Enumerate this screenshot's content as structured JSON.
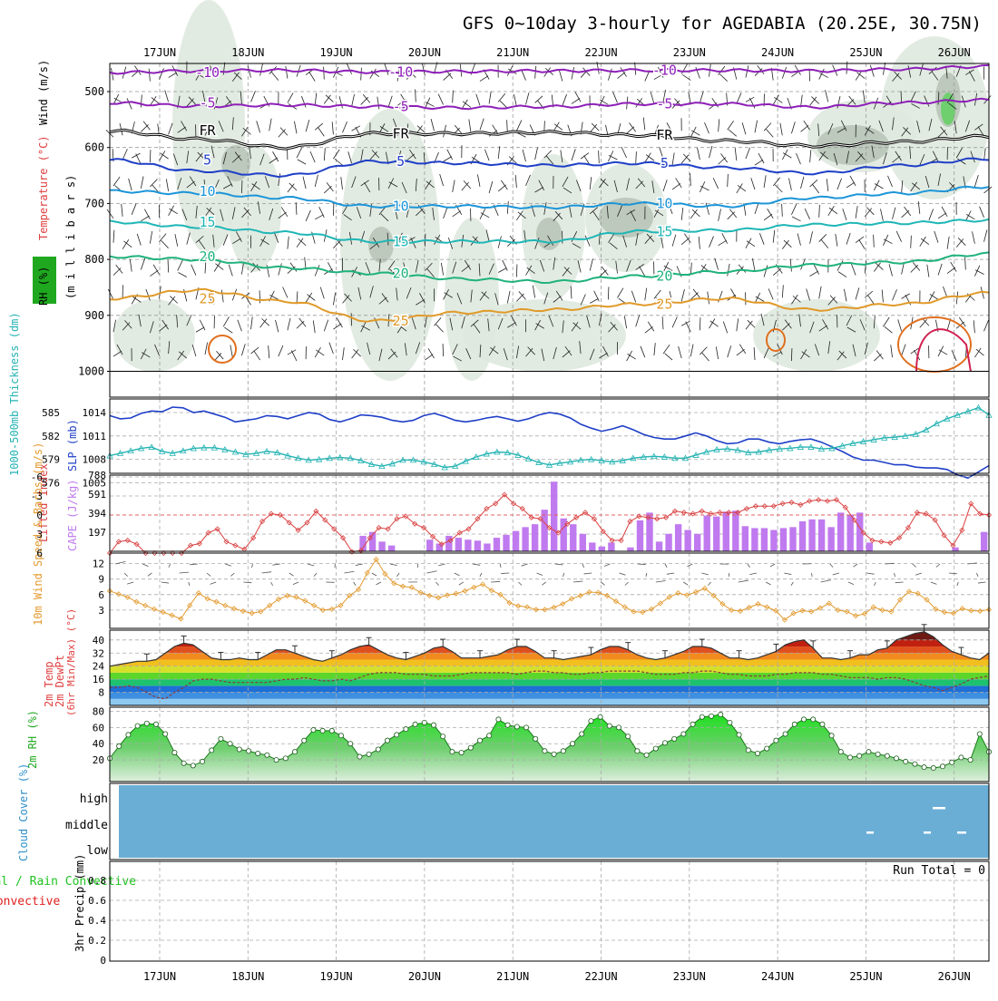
{
  "title": "GFS 0~10day 3-hourly for AGEDABIA (20.25E, 30.75N)",
  "dates": [
    "17JUN",
    "18JUN",
    "19JUN",
    "20JUN",
    "21JUN",
    "22JUN",
    "23JUN",
    "24JUN",
    "25JUN",
    "26JUN"
  ],
  "run_total": "Run Total = 0",
  "colors": {
    "humidity_fill": "#dfe9df",
    "humidity_dark": "#bcc9bc",
    "humidity_green": "#6fcf6f",
    "slp": "#1f3fc7",
    "thickness": "#25b3b3",
    "cape": "#c07aef",
    "lifted_index": "#d94040",
    "wind10": "#e39a2e",
    "cloud_fill": "#6aaed6",
    "rh_green": "#1fc21f"
  },
  "chart_data": [
    {
      "type": "area",
      "name": "upper",
      "ylabel_lines": [
        "RH (%)",
        "Temperature (°C)",
        "Wind (m/s)",
        "(m i l l i b a r s)"
      ],
      "ylim": [
        1000,
        450
      ],
      "ytick_labels": [
        "500",
        "600",
        "700",
        "800",
        "900",
        "1000"
      ],
      "yticks": [
        500,
        600,
        700,
        800,
        900,
        1000
      ],
      "contour_labels": [
        "-10",
        "-5",
        "FR",
        "5",
        "10",
        "15",
        "20",
        "25"
      ],
      "contours": [
        {
          "label": "-10",
          "color": "#8e1fb8",
          "values": [
            466,
            463,
            462,
            465,
            464,
            463,
            462,
            462,
            463,
            460,
            455
          ]
        },
        {
          "label": "-5",
          "color": "#8e1fb8",
          "values": [
            520,
            526,
            524,
            527,
            529,
            527,
            522,
            522,
            528,
            520,
            515
          ]
        },
        {
          "label": "FR",
          "color": "#000000",
          "values": [
            570,
            585,
            600,
            575,
            575,
            573,
            578,
            588,
            597,
            590,
            580
          ]
        },
        {
          "label": "5",
          "color": "#1f3fc7",
          "values": [
            622,
            642,
            650,
            625,
            628,
            632,
            628,
            636,
            646,
            632,
            620
          ]
        },
        {
          "label": "10",
          "color": "#1c95d8",
          "values": [
            678,
            682,
            690,
            705,
            705,
            707,
            700,
            705,
            690,
            682,
            670
          ]
        },
        {
          "label": "15",
          "color": "#1fb6b6",
          "values": [
            733,
            742,
            752,
            768,
            768,
            768,
            750,
            748,
            738,
            735,
            730
          ]
        },
        {
          "label": "20",
          "color": "#1fb27c",
          "values": [
            795,
            800,
            815,
            825,
            835,
            840,
            830,
            822,
            810,
            805,
            790
          ]
        },
        {
          "label": "25",
          "color": "#e09a2a",
          "values": [
            870,
            855,
            875,
            910,
            895,
            890,
            880,
            870,
            890,
            880,
            860
          ]
        }
      ]
    },
    {
      "type": "line",
      "name": "slp-thickness",
      "ylabel": "1000-500mb Thickness (dm)",
      "ylabel2": "SLP (mb)",
      "ytick_labels_left": [
        "585",
        "582",
        "579",
        "576"
      ],
      "ytick_labels_right": [
        "1014",
        "1011",
        "1008",
        "1005"
      ],
      "ylim_slp": [
        1004.5,
        1016
      ],
      "slp": [
        1013.6,
        1013.2,
        1013.3,
        1013.9,
        1014.2,
        1014.1,
        1014.7,
        1014.6,
        1014.0,
        1014.2,
        1013.8,
        1013.4,
        1012.8,
        1013.0,
        1013.2,
        1013.6,
        1013.5,
        1013.2,
        1013.6,
        1014.0,
        1013.8,
        1013.1,
        1012.8,
        1013.2,
        1013.7,
        1013.6,
        1013.4,
        1013.0,
        1012.8,
        1013.0,
        1013.6,
        1013.9,
        1013.5,
        1013.0,
        1012.8,
        1013.0,
        1013.3,
        1013.5,
        1013.2,
        1012.9,
        1013.2,
        1013.7,
        1014.0,
        1013.8,
        1013.3,
        1012.5,
        1012.0,
        1011.6,
        1011.9,
        1012.3,
        1011.8,
        1011.2,
        1010.8,
        1010.6,
        1010.6,
        1011.0,
        1011.4,
        1011.0,
        1010.4,
        1010.0,
        1010.1,
        1010.6,
        1010.6,
        1010.2,
        1010.0,
        1010.3,
        1010.5,
        1010.6,
        1010.2,
        1009.6,
        1009.0,
        1008.3,
        1007.9,
        1007.9,
        1007.6,
        1007.3,
        1007.3,
        1007.0,
        1006.9,
        1006.9,
        1006.7,
        1006.0,
        1005.6,
        1006.4,
        1007.2
      ],
      "thickness": [
        578.0,
        578.4,
        578.8,
        579.2,
        579.4,
        578.7,
        578.4,
        578.8,
        579.2,
        579.3,
        579.3,
        579.0,
        578.6,
        578.2,
        578.4,
        578.7,
        578.5,
        578.0,
        577.6,
        577.3,
        577.4,
        577.6,
        577.7,
        577.6,
        577.2,
        576.6,
        576.3,
        576.7,
        577.3,
        577.3,
        577.0,
        576.6,
        576.1,
        576.3,
        577.1,
        577.8,
        578.3,
        578.6,
        578.5,
        578.1,
        577.5,
        576.9,
        576.5,
        576.8,
        577.0,
        577.3,
        577.4,
        577.2,
        577.0,
        577.2,
        577.6,
        577.8,
        577.9,
        577.8,
        577.6,
        577.6,
        578.1,
        578.6,
        579.0,
        579.1,
        578.9,
        578.5,
        578.6,
        578.9,
        579.1,
        579.2,
        579.4,
        579.4,
        579.1,
        579.2,
        579.6,
        580.0,
        580.3,
        580.6,
        580.9,
        581.0,
        581.2,
        581.5,
        582.2,
        583.2,
        584.0,
        584.6,
        585.2,
        585.8,
        584.6
      ]
    },
    {
      "type": "bar",
      "name": "cape-lifted-index",
      "ylabel": "Lifted Index",
      "ylabel2": "CAPE (J/kg)",
      "ytick_labels_left": [
        "-6",
        "-3",
        "0",
        "3",
        "6"
      ],
      "ytick_labels_right": [
        "788",
        "591",
        "394",
        "197"
      ],
      "cape": [
        0,
        0,
        0,
        0,
        0,
        0,
        0,
        0,
        0,
        0,
        0,
        0,
        0,
        0,
        0,
        0,
        0,
        0,
        0,
        0,
        0,
        0,
        0,
        0,
        0,
        0,
        160,
        200,
        100,
        60,
        0,
        0,
        0,
        120,
        80,
        160,
        140,
        120,
        110,
        80,
        140,
        170,
        210,
        250,
        280,
        430,
        720,
        340,
        280,
        180,
        90,
        50,
        90,
        0,
        40,
        320,
        400,
        100,
        180,
        280,
        220,
        180,
        370,
        360,
        410,
        420,
        260,
        240,
        240,
        220,
        240,
        250,
        310,
        330,
        330,
        250,
        400,
        380,
        400,
        90,
        0,
        0,
        0,
        0,
        0,
        0,
        0,
        0,
        40,
        0,
        0,
        200
      ],
      "lifted_index": [
        6,
        4.2,
        4.0,
        4.6,
        6,
        6,
        6,
        6,
        6,
        4.8,
        4.5,
        2.8,
        2.2,
        4.2,
        4.8,
        5.4,
        3.6,
        1.0,
        -0.2,
        0.0,
        1.2,
        2.4,
        1.2,
        -0.6,
        0.8,
        2.2,
        3.6,
        5.8,
        5.6,
        3.6,
        2.0,
        2.2,
        0.6,
        0.2,
        1.4,
        2.0,
        3.4,
        4.6,
        4.0,
        2.8,
        2.2,
        0.6,
        -1.0,
        -1.8,
        -3.2,
        -1.8,
        -1.0,
        0.4,
        0.6,
        2.0,
        2.8,
        1.4,
        0.4,
        -0.4,
        0.6,
        2.6,
        4.0,
        4.0,
        1.0,
        0.2,
        0.4,
        0.6,
        0.4,
        -0.6,
        -0.4,
        -0.2,
        -0.6,
        -0.2,
        -0.4,
        -0.4,
        -0.4,
        -1.0,
        -1.4,
        -1.4,
        -1.4,
        -1.8,
        -2.0,
        -1.6,
        -2.2,
        -2.4,
        -2.2,
        -2.4,
        -1.2,
        0.8,
        2.8,
        4.0,
        4.2,
        4.4,
        3.6,
        2.0,
        -0.4,
        -0.2,
        0.8,
        3.2,
        4.8,
        2.4,
        -1.8,
        -0.2,
        0.0
      ],
      "li_ylim": [
        6,
        -6
      ],
      "cape_ylim": [
        0,
        788
      ]
    },
    {
      "type": "line",
      "name": "wind10m",
      "ylabel": "10m Wind Speed & Barbs (m/s)",
      "ytick_labels": [
        "12",
        "9",
        "6",
        "3"
      ],
      "ylim": [
        0,
        13.5
      ],
      "values": [
        6.7,
        6.1,
        5.5,
        4.6,
        3.9,
        3.2,
        2.6,
        2.0,
        1.3,
        3.9,
        6.3,
        5.2,
        4.6,
        3.9,
        3.3,
        2.8,
        2.4,
        2.7,
        3.9,
        5.1,
        5.8,
        5.5,
        4.8,
        3.9,
        3.0,
        3.2,
        3.9,
        5.8,
        7.0,
        10.2,
        12.8,
        10.0,
        8.2,
        7.6,
        7.4,
        6.4,
        5.8,
        5.4,
        5.9,
        6.2,
        6.7,
        7.4,
        8.0,
        6.8,
        6.0,
        4.4,
        3.8,
        3.6,
        3.1,
        3.1,
        3.5,
        4.2,
        5.2,
        5.8,
        6.5,
        6.4,
        5.8,
        4.7,
        3.6,
        2.7,
        2.6,
        3.2,
        4.3,
        5.5,
        6.3,
        5.9,
        6.5,
        7.2,
        5.8,
        4.2,
        3.0,
        2.8,
        3.5,
        4.2,
        3.6,
        2.9,
        1.1,
        2.4,
        2.9,
        2.7,
        3.4,
        4.3,
        3.0,
        2.7,
        1.9,
        2.3,
        3.6,
        3.0,
        2.7,
        5.0,
        6.6,
        6.2,
        5.0,
        3.2,
        2.6,
        2.4,
        3.3,
        2.9,
        2.8,
        3.1
      ]
    },
    {
      "type": "area",
      "name": "temp-dewpoint",
      "ylabel_lines": [
        "2m Temp",
        "2m DewPt",
        "(6hr Min/Max) (°C)"
      ],
      "ytick_labels": [
        "40",
        "32",
        "24",
        "16",
        "8"
      ],
      "ylim": [
        0,
        46
      ],
      "temp": [
        24,
        25,
        26,
        27,
        27,
        28,
        32,
        36,
        38,
        37,
        33,
        29,
        28,
        28,
        29,
        28,
        28,
        31,
        34,
        34,
        32,
        30,
        28,
        27,
        29,
        31,
        34,
        36,
        37,
        34,
        31,
        29,
        28,
        30,
        32,
        35,
        36,
        33,
        29,
        29,
        29,
        30,
        31,
        34,
        36,
        36,
        33,
        29,
        29,
        28,
        29,
        30,
        31,
        34,
        36,
        36,
        34,
        31,
        29,
        28,
        29,
        31,
        33,
        36,
        36,
        35,
        32,
        29,
        29,
        28,
        29,
        31,
        33,
        37,
        39,
        40,
        35,
        29,
        29,
        28,
        29,
        31,
        31,
        34,
        35,
        40,
        42,
        44,
        45,
        42,
        37,
        33,
        31,
        29,
        28,
        32
      ],
      "dewpoint": [
        11,
        11,
        12,
        11,
        8,
        5,
        4,
        8,
        11,
        15,
        16,
        16,
        15,
        14,
        14,
        14,
        14,
        14,
        15,
        16,
        16,
        17,
        16,
        15,
        15,
        16,
        15,
        17,
        19,
        20,
        20,
        20,
        19,
        19,
        19,
        18,
        18,
        18,
        19,
        20,
        20,
        20,
        20,
        20,
        19,
        20,
        21,
        21,
        20,
        20,
        19,
        19,
        20,
        20,
        21,
        21,
        21,
        21,
        20,
        19,
        19,
        19,
        20,
        20,
        21,
        21,
        20,
        19,
        19,
        18,
        18,
        18,
        19,
        19,
        20,
        20,
        20,
        19,
        19,
        18,
        17,
        17,
        17,
        16,
        17,
        17,
        16,
        14,
        12,
        11,
        9,
        11,
        13,
        16,
        17,
        18
      ]
    },
    {
      "type": "area",
      "name": "rh2m",
      "ylabel": "2m RH (%)",
      "ytick_labels": [
        "80",
        "60",
        "40",
        "20"
      ],
      "ylim": [
        0,
        85
      ],
      "values": [
        22,
        37,
        51,
        62,
        65,
        64,
        52,
        29,
        16,
        13,
        18,
        32,
        46,
        40,
        33,
        31,
        28,
        26,
        20,
        22,
        30,
        44,
        57,
        56,
        56,
        50,
        40,
        24,
        27,
        33,
        44,
        51,
        58,
        64,
        66,
        63,
        49,
        30,
        29,
        35,
        44,
        50,
        70,
        63,
        61,
        60,
        46,
        31,
        27,
        31,
        40,
        52,
        68,
        73,
        62,
        60,
        49,
        31,
        26,
        34,
        41,
        46,
        52,
        64,
        73,
        74,
        76,
        66,
        51,
        32,
        28,
        34,
        44,
        52,
        64,
        70,
        70,
        64,
        50,
        30,
        23,
        25,
        30,
        27,
        25,
        22,
        18,
        15,
        11,
        10,
        12,
        17,
        23,
        20,
        52,
        30
      ]
    },
    {
      "type": "heatmap",
      "name": "cloud-cover",
      "ylabel": "Cloud Cover (%)",
      "ytick_labels": [
        "high",
        "middle",
        "low"
      ]
    },
    {
      "type": "line",
      "name": "precip",
      "ylabel": "Total / Rain Convective",
      "ylabel2": "3hr Precip (mm)",
      "ytick_labels": [
        "0.8",
        "0.6",
        "0.4",
        "0.2",
        "0"
      ],
      "ylim": [
        0,
        0.95
      ],
      "values": []
    }
  ]
}
